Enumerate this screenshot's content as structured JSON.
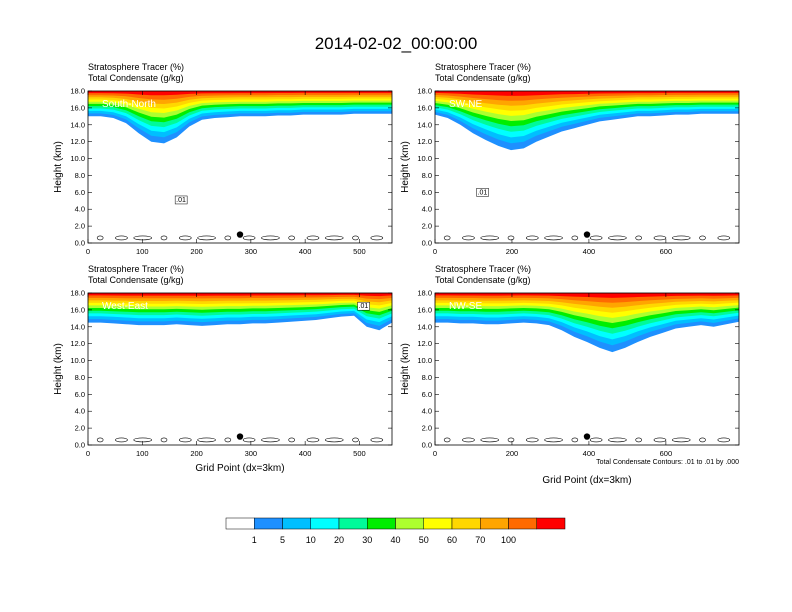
{
  "title": "2014-02-02_00:00:00",
  "header_line1": "Stratosphere Tracer   (%)",
  "header_line2": "Total Condensate   (g/kg)",
  "contour_note": "Total Condensate Contours: .01 to .01 by .000",
  "colors": {
    "levels": [
      "#ffffff",
      "#1e90ff",
      "#00bfff",
      "#00ffff",
      "#00fa9a",
      "#00ee00",
      "#adff2f",
      "#ffff00",
      "#ffd700",
      "#ffa500",
      "#ff6a00",
      "#ff0000"
    ],
    "contour": "#000000",
    "marker": "#000000"
  },
  "chart_data": [
    {
      "type": "heatmap",
      "panel_label": "South-North",
      "ylabel": "Height (km)",
      "xlabel": "",
      "xlim": [
        0,
        560
      ],
      "ylim": [
        0,
        18
      ],
      "xticks": [
        "0",
        "100",
        "200",
        "300",
        "400",
        "500"
      ],
      "xtick_values": [
        0,
        100,
        200,
        300,
        400,
        500
      ],
      "yticks": [
        "0.0",
        "2.0",
        "4.0",
        "6.0",
        "8.0",
        "10.0",
        "12.0",
        "14.0",
        "16.0",
        "18.0"
      ],
      "marker": {
        "x": 280,
        "y": 1.0
      },
      "contour_label": ".01",
      "tracer_base_km": [
        15.0,
        15.0,
        14.8,
        14.2,
        13.0,
        12.0,
        11.8,
        12.5,
        13.8,
        14.6,
        14.8,
        14.9,
        15.0,
        15.0,
        15.0,
        15.1,
        15.1,
        15.2,
        15.2,
        15.2,
        15.2,
        15.3,
        15.3,
        15.3,
        15.3
      ],
      "tracer_thickness_km": [
        3.0,
        3.0,
        3.2,
        3.8,
        5.0,
        6.0,
        6.2,
        5.5,
        4.2,
        3.4,
        3.2,
        3.1,
        3.0,
        3.0,
        3.0,
        2.9,
        2.9,
        2.8,
        2.8,
        2.8,
        2.8,
        2.7,
        2.7,
        2.7,
        2.7
      ]
    },
    {
      "type": "heatmap",
      "panel_label": "SW-NE",
      "ylabel": "Height (km)",
      "xlabel": "",
      "xlim": [
        0,
        790
      ],
      "ylim": [
        0,
        18
      ],
      "xticks": [
        "0",
        "200",
        "400",
        "600"
      ],
      "xtick_values": [
        0,
        200,
        400,
        600
      ],
      "yticks": [
        "0.0",
        "2.0",
        "4.0",
        "6.0",
        "8.0",
        "10.0",
        "12.0",
        "14.0",
        "16.0",
        "18.0"
      ],
      "marker": {
        "x": 395,
        "y": 1.0
      },
      "contour_label": ".01",
      "tracer_base_km": [
        15.2,
        14.8,
        14.0,
        13.0,
        12.2,
        11.5,
        11.0,
        11.2,
        12.0,
        12.6,
        13.2,
        13.6,
        14.0,
        14.4,
        14.6,
        14.8,
        15.0,
        15.0,
        15.1,
        15.2,
        15.2,
        15.3,
        15.3,
        15.3,
        15.3
      ],
      "tracer_thickness_km": [
        2.8,
        3.2,
        4.0,
        5.0,
        5.8,
        6.5,
        7.0,
        6.8,
        6.0,
        5.4,
        4.8,
        4.4,
        4.0,
        3.6,
        3.4,
        3.2,
        3.0,
        3.0,
        2.9,
        2.8,
        2.8,
        2.7,
        2.7,
        2.7,
        2.7
      ]
    },
    {
      "type": "heatmap",
      "panel_label": "West-East",
      "ylabel": "Height (km)",
      "xlabel": "Grid Point (dx=3km)",
      "xlim": [
        0,
        560
      ],
      "ylim": [
        0,
        18
      ],
      "xticks": [
        "0",
        "100",
        "200",
        "300",
        "400",
        "500"
      ],
      "xtick_values": [
        0,
        100,
        200,
        300,
        400,
        500
      ],
      "yticks": [
        "0.0",
        "2.0",
        "4.0",
        "6.0",
        "8.0",
        "10.0",
        "12.0",
        "14.0",
        "16.0",
        "18.0"
      ],
      "marker": {
        "x": 280,
        "y": 1.0
      },
      "contour_label": ".01",
      "tracer_base_km": [
        14.5,
        14.5,
        14.4,
        14.3,
        14.2,
        14.2,
        14.2,
        14.3,
        14.2,
        14.1,
        14.2,
        14.3,
        14.3,
        14.4,
        14.4,
        14.5,
        14.6,
        14.7,
        14.8,
        15.0,
        15.2,
        15.3,
        14.0,
        13.6,
        14.5
      ],
      "tracer_thickness_km": [
        3.5,
        3.5,
        3.6,
        3.7,
        3.8,
        3.8,
        3.8,
        3.7,
        3.8,
        3.9,
        3.8,
        3.7,
        3.7,
        3.6,
        3.6,
        3.5,
        3.4,
        3.3,
        3.2,
        3.0,
        2.8,
        2.7,
        4.0,
        4.4,
        3.5
      ]
    },
    {
      "type": "heatmap",
      "panel_label": "NW-SE",
      "ylabel": "Height (km)",
      "xlabel": "Grid Point (dx=3km)",
      "xlim": [
        0,
        790
      ],
      "ylim": [
        0,
        18
      ],
      "xticks": [
        "0",
        "200",
        "400",
        "600"
      ],
      "xtick_values": [
        0,
        200,
        400,
        600
      ],
      "yticks": [
        "0.0",
        "2.0",
        "4.0",
        "6.0",
        "8.0",
        "10.0",
        "12.0",
        "14.0",
        "16.0",
        "18.0"
      ],
      "marker": {
        "x": 395,
        "y": 1.0
      },
      "contour_label": "",
      "tracer_base_km": [
        14.5,
        14.5,
        14.4,
        14.4,
        14.3,
        14.3,
        14.4,
        14.5,
        14.4,
        14.2,
        13.6,
        12.8,
        12.2,
        11.5,
        11.0,
        11.5,
        12.2,
        12.8,
        13.3,
        13.8,
        14.0,
        14.2,
        14.0,
        14.3,
        14.6
      ],
      "tracer_thickness_km": [
        3.5,
        3.5,
        3.6,
        3.6,
        3.7,
        3.7,
        3.6,
        3.5,
        3.6,
        3.8,
        4.4,
        5.2,
        5.8,
        6.5,
        7.0,
        6.5,
        5.8,
        5.2,
        4.7,
        4.2,
        4.0,
        3.8,
        4.0,
        3.7,
        3.4
      ]
    }
  ],
  "colorbar": {
    "labels": [
      "1",
      "5",
      "10",
      "20",
      "30",
      "40",
      "50",
      "60",
      "70",
      "100"
    ]
  }
}
